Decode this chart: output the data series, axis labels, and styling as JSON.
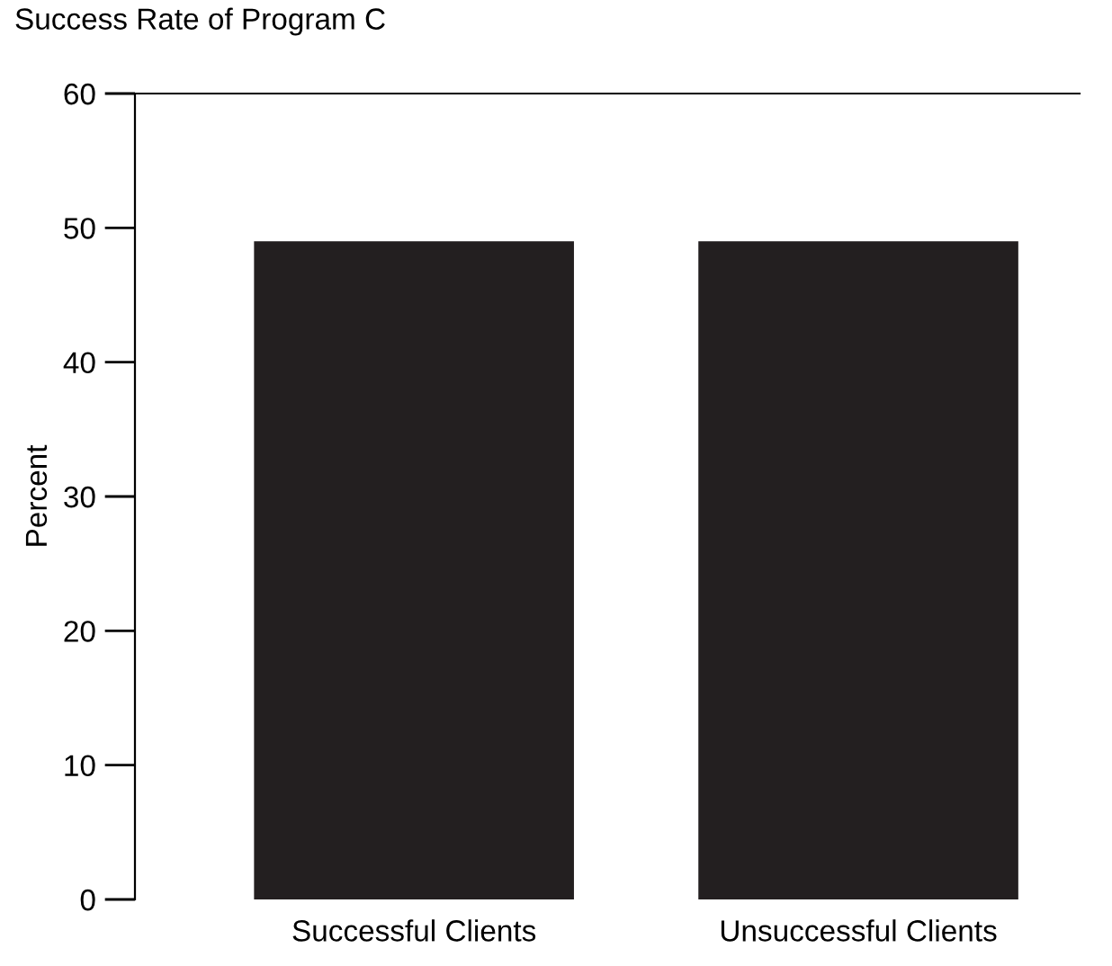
{
  "chart_data": {
    "type": "bar",
    "title": "Success Rate of Program C",
    "ylabel": "Percent",
    "categories": [
      "Successful Clients",
      "Unsuccessful Clients"
    ],
    "values": [
      49,
      49
    ],
    "color": "#231f20",
    "ylim": [
      0,
      60
    ],
    "yticks": [
      0,
      10,
      20,
      30,
      40,
      50,
      60
    ],
    "grid": false
  }
}
